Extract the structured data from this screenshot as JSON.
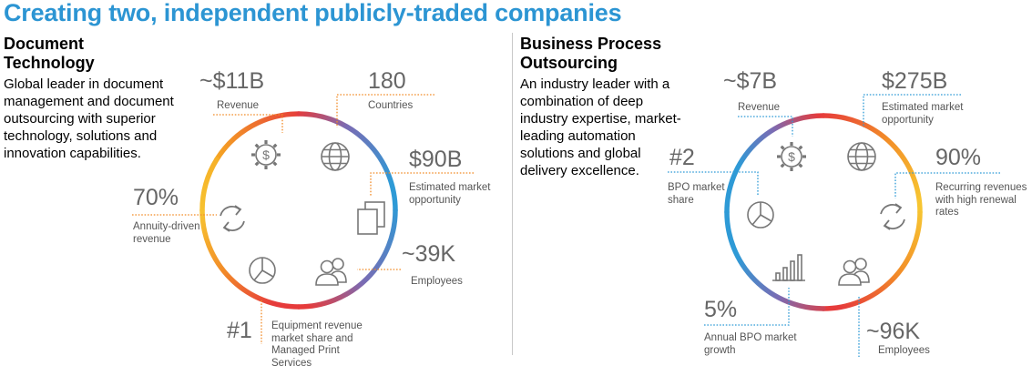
{
  "title": "Creating two, independent publicly-traded companies",
  "left": {
    "heading_line1": "Document",
    "heading_line2": "Technology",
    "description": [
      "Global leader in document",
      "management and document",
      "outsourcing with superior",
      "technology, solutions and",
      "innovation capabilities."
    ],
    "stats": {
      "revenue": {
        "value": "~$11B",
        "label": "Revenue"
      },
      "countries": {
        "value": "180",
        "label": "Countries"
      },
      "market": {
        "value": "$90B",
        "label": [
          "Estimated market",
          "opportunity"
        ]
      },
      "employees": {
        "value": "~39K",
        "label": "Employees"
      },
      "annuity": {
        "value": "70%",
        "label": [
          "Annuity-driven",
          "revenue"
        ]
      },
      "rank": {
        "value": "#1",
        "label": [
          "Equipment revenue",
          "market share and",
          "Managed Print",
          "Services"
        ]
      }
    }
  },
  "right": {
    "heading_line1": "Business Process",
    "heading_line2": "Outsourcing",
    "description": [
      "An industry leader with a",
      "combination of deep",
      "industry expertise, market-",
      "leading automation",
      "solutions and global",
      "delivery excellence."
    ],
    "stats": {
      "revenue": {
        "value": "~$7B",
        "label": "Revenue"
      },
      "market": {
        "value": "$275B",
        "label": [
          "Estimated market",
          "opportunity"
        ]
      },
      "recurring": {
        "value": "90%",
        "label": [
          "Recurring revenues",
          "with high renewal",
          "rates"
        ]
      },
      "employees": {
        "value": "~96K",
        "label": "Employees"
      },
      "growth": {
        "value": "5%",
        "label": [
          "Annual BPO market",
          "growth"
        ]
      },
      "rank": {
        "value": "#2",
        "label": [
          "BPO market",
          "share"
        ]
      }
    }
  },
  "colors": {
    "title": "#2c95d3",
    "orange": "#f28c28",
    "blue": "#2e9ad6",
    "red": "#e63b3b",
    "purple": "#7b6bb3",
    "yellow": "#f7c531"
  },
  "icons": [
    "gear-dollar-icon",
    "globe-icon",
    "documents-icon",
    "people-icon",
    "refresh-icon",
    "pie-chart-icon",
    "bar-chart-icon"
  ]
}
